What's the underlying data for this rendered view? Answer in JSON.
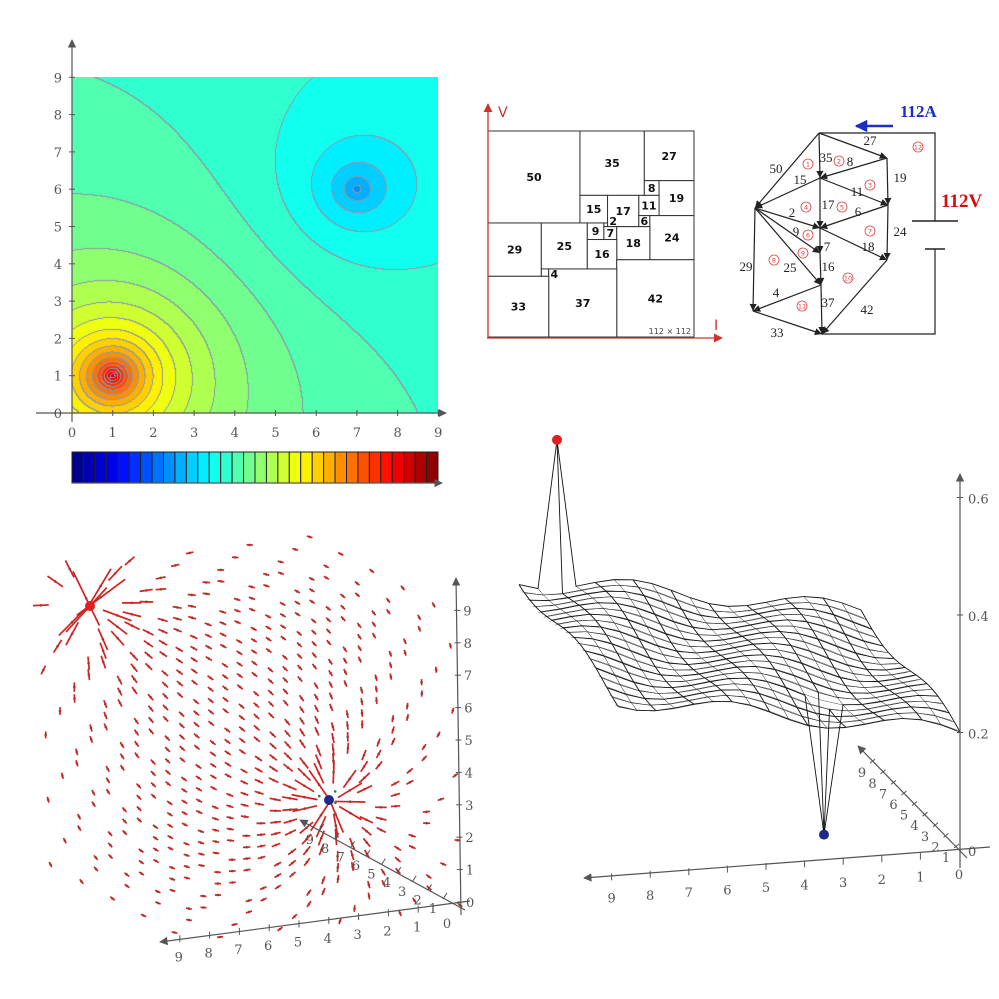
{
  "contour_plot": {
    "x_ticks": [
      "0",
      "1",
      "2",
      "3",
      "4",
      "5",
      "6",
      "7",
      "8",
      "9"
    ],
    "y_ticks": [
      "0",
      "1",
      "2",
      "3",
      "4",
      "5",
      "6",
      "7",
      "8",
      "9"
    ],
    "colormap": "jet",
    "colorbar_levels": 32,
    "maximum_near": [
      1,
      1
    ],
    "minimum_near": [
      7,
      6
    ],
    "contour_line_color": "#8a9aa8"
  },
  "squared_square": {
    "axis_v_label": "V",
    "axis_i_label": "I",
    "size_label": "112 × 112",
    "axis_color": "#d03030",
    "squares": [
      "50",
      "35",
      "27",
      "8",
      "19",
      "15",
      "17",
      "11",
      "6",
      "24",
      "29",
      "25",
      "9",
      "2",
      "7",
      "18",
      "16",
      "42",
      "4",
      "37",
      "33"
    ]
  },
  "circuit": {
    "current_label": "112A",
    "current_color": "#1a2fc0",
    "voltage_label": "112V",
    "voltage_color": "#d01010",
    "edge_labels": [
      "27",
      "35",
      "8",
      "50",
      "15",
      "19",
      "11",
      "17",
      "6",
      "2",
      "9",
      "24",
      "7",
      "18",
      "29",
      "25",
      "16",
      "4",
      "37",
      "42",
      "33"
    ],
    "mesh_labels": [
      "1",
      "2",
      "3",
      "4",
      "5",
      "6",
      "7",
      "8",
      "9",
      "10",
      "11",
      "12"
    ],
    "mesh_label_color": "#e04040"
  },
  "vector_field": {
    "vertical_ticks": [
      "0",
      "1",
      "2",
      "3",
      "4",
      "5",
      "6",
      "7",
      "8",
      "9"
    ],
    "horizontal_ticks": [
      "0",
      "1",
      "2",
      "3",
      "4",
      "5",
      "6",
      "7",
      "8",
      "9"
    ],
    "depth_ticks": [
      "1",
      "2",
      "3",
      "4",
      "5",
      "6",
      "7",
      "8",
      "9"
    ],
    "dot_color": "#1f7a4f",
    "vector_color": "#d42020",
    "source_color": "#e02020",
    "sink_color": "#22288a"
  },
  "surface_plot": {
    "vertical_ticks": [
      "0",
      "0.2",
      "0.4",
      "0.6"
    ],
    "horizontal_ticks": [
      "0",
      "1",
      "2",
      "3",
      "4",
      "5",
      "6",
      "7",
      "8",
      "9"
    ],
    "depth_ticks": [
      "1",
      "2",
      "3",
      "4",
      "5",
      "6",
      "7",
      "8",
      "9"
    ],
    "peak_value": 0.59,
    "dip_value": 0.01,
    "peak_color": "#e02020",
    "dip_color": "#22288a"
  }
}
